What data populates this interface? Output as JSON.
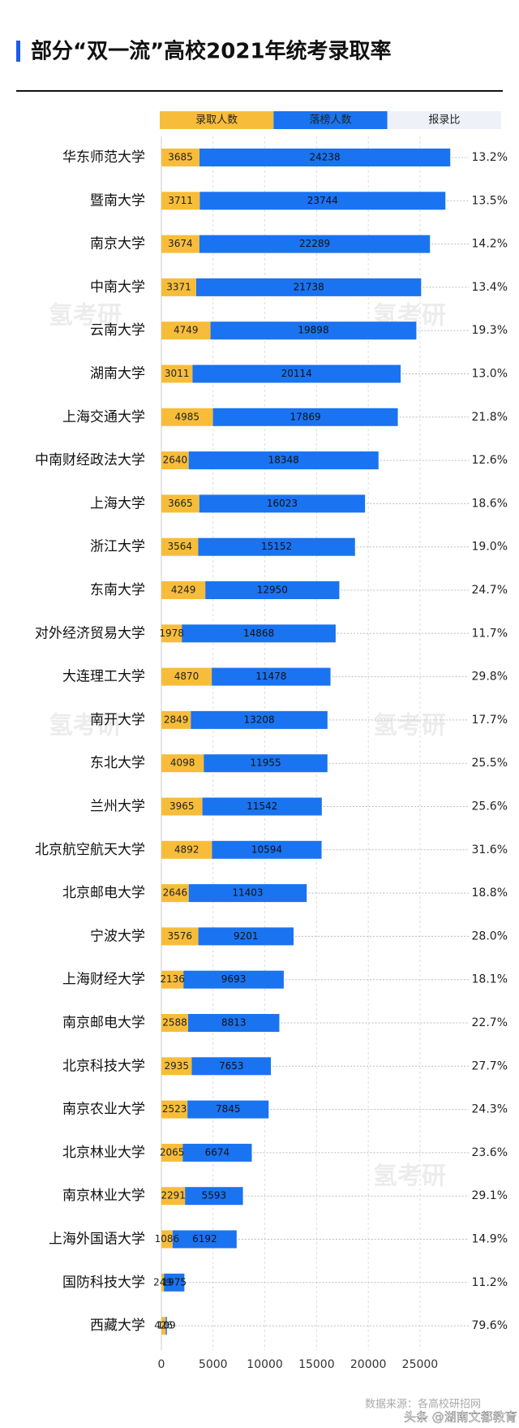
{
  "chart_data": {
    "type": "stacked-barh",
    "title": "部分“双一流”高校2021年统考录取率",
    "categories": [
      "华东师范大学",
      "暨南大学",
      "南京大学",
      "中南大学",
      "云南大学",
      "湖南大学",
      "上海交通大学",
      "中南财经政法大学",
      "上海大学",
      "浙江大学",
      "东南大学",
      "对外经济贸易大学",
      "大连理工大学",
      "南开大学",
      "东北大学",
      "兰州大学",
      "北京航空航天大学",
      "北京邮电大学",
      "宁波大学",
      "上海财经大学",
      "南京邮电大学",
      "北京科技大学",
      "南京农业大学",
      "北京林业大学",
      "南京林业大学",
      "上海外国语大学",
      "国防科技大学",
      "西藏大学"
    ],
    "series": [
      {
        "name": "录取人数",
        "color": "#f7bd3a",
        "values": [
          3685,
          3711,
          3674,
          3371,
          4749,
          3011,
          4985,
          2640,
          3665,
          3564,
          4249,
          1978,
          4870,
          2849,
          4098,
          3965,
          4892,
          2646,
          3576,
          2136,
          2588,
          2935,
          2523,
          2065,
          2291,
          1086,
          249,
          426
        ]
      },
      {
        "name": "落榜人数",
        "color": "#1a73f0",
        "values": [
          24238,
          23744,
          22289,
          21738,
          19898,
          20114,
          17869,
          18348,
          16023,
          15152,
          12950,
          14868,
          11478,
          13208,
          11955,
          11542,
          10594,
          11403,
          9201,
          9693,
          8813,
          7653,
          7845,
          6674,
          5593,
          6192,
          1975,
          109
        ]
      },
      {
        "name": "报录比",
        "color": "#eef1f7",
        "values": [
          13.2,
          13.5,
          14.2,
          13.4,
          19.3,
          13.0,
          21.8,
          12.6,
          18.6,
          19.0,
          24.7,
          11.7,
          29.8,
          17.7,
          25.5,
          25.6,
          31.6,
          18.8,
          28.0,
          18.1,
          22.7,
          27.7,
          24.3,
          23.6,
          29.1,
          14.9,
          11.2,
          79.6
        ],
        "value_labels": [
          "13.2%",
          "13.5%",
          "14.2%",
          "13.4%",
          "19.3%",
          "13.0%",
          "21.8%",
          "12.6%",
          "18.6%",
          "19.0%",
          "24.7%",
          "11.7%",
          "29.8%",
          "17.7%",
          "25.5%",
          "25.6%",
          "31.6%",
          "18.8%",
          "28.0%",
          "18.1%",
          "22.7%",
          "27.7%",
          "24.3%",
          "23.6%",
          "29.1%",
          "14.9%",
          "11.2%",
          "79.6%"
        ]
      }
    ],
    "xlim": [
      0,
      33000
    ],
    "xticks": [
      0,
      5000,
      10000,
      15000,
      20000,
      25000
    ],
    "grid": true,
    "source": "数据来源：各高校研招网",
    "watermark": "氢考研",
    "credit": "头条 @湖南文都教育"
  }
}
